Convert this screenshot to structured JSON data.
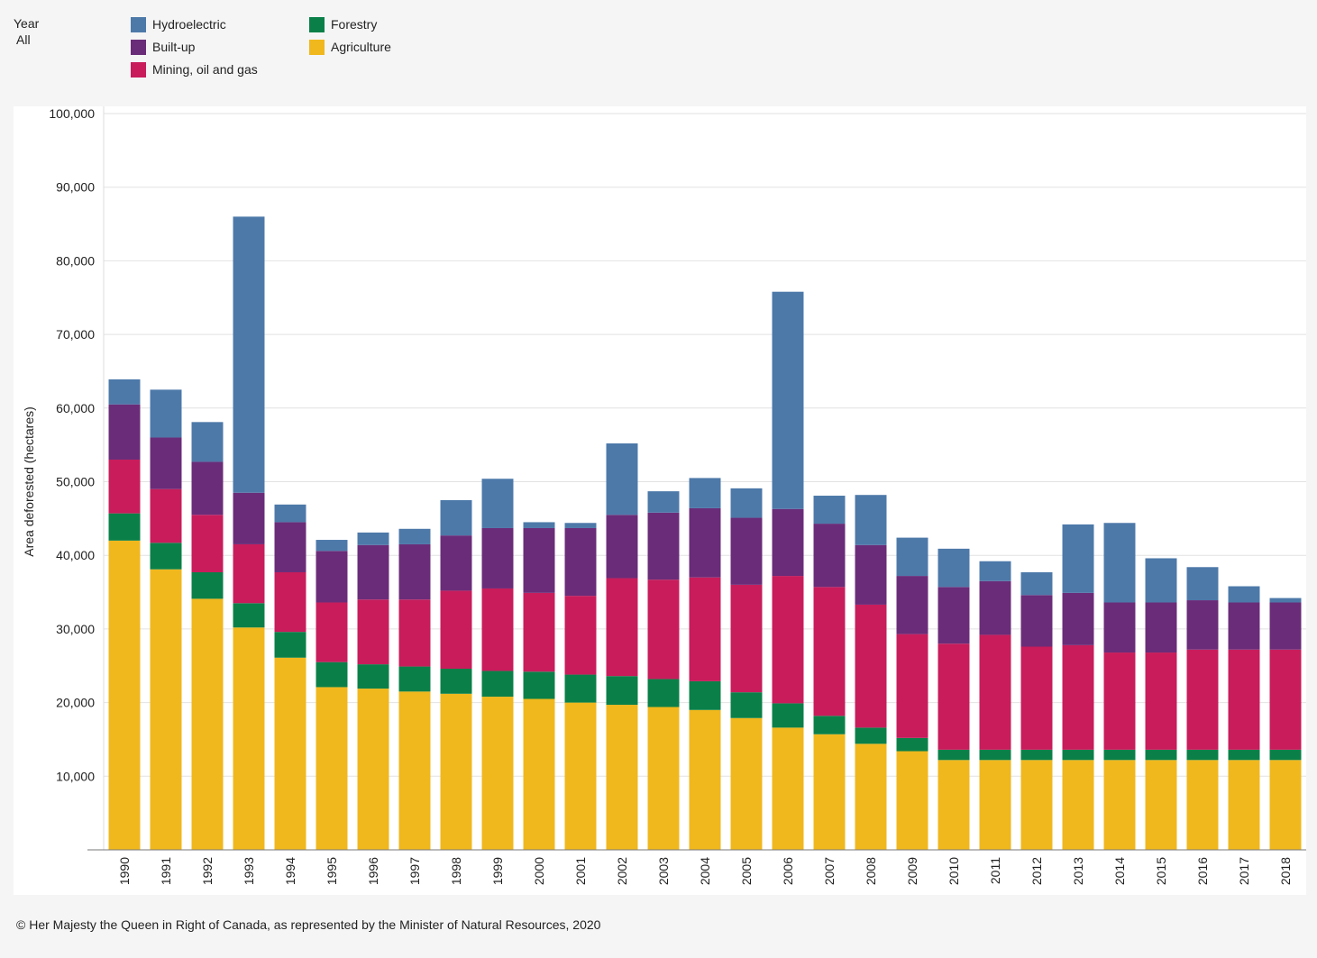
{
  "filter": {
    "label": "Year",
    "value": "All"
  },
  "footer": {
    "copyright": "© Her Majesty the Queen in Right of Canada, as represented by the Minister of Natural Resources, 2020"
  },
  "colors": {
    "Agriculture": "#f0b81d",
    "Forestry": "#0a8048",
    "Mining, oil and gas": "#c81c5b",
    "Built-up": "#6a2c79",
    "Hydroelectric": "#4d79a9"
  },
  "chart_data": {
    "type": "bar",
    "stacked": true,
    "title": "",
    "xlabel": "",
    "ylabel": "Area deforested (hectares)",
    "ylim": [
      0,
      100000
    ],
    "yticks": [
      10000,
      20000,
      30000,
      40000,
      50000,
      60000,
      70000,
      80000,
      90000,
      100000
    ],
    "ytick_labels": [
      "10,000",
      "20,000",
      "30,000",
      "40,000",
      "50,000",
      "60,000",
      "70,000",
      "80,000",
      "90,000",
      "100,000"
    ],
    "grid": true,
    "legend_position": "top-left",
    "legend_order": [
      "Hydroelectric",
      "Built-up",
      "Mining, oil and gas",
      "Forestry",
      "Agriculture"
    ],
    "categories": [
      "1990",
      "1991",
      "1992",
      "1993",
      "1994",
      "1995",
      "1996",
      "1997",
      "1998",
      "1999",
      "2000",
      "2001",
      "2002",
      "2003",
      "2004",
      "2005",
      "2006",
      "2007",
      "2008",
      "2009",
      "2010",
      "2011",
      "2012",
      "2013",
      "2014",
      "2015",
      "2016",
      "2017",
      "2018"
    ],
    "series": [
      {
        "name": "Agriculture",
        "values": [
          42000,
          38100,
          34100,
          30200,
          26100,
          22100,
          21900,
          21500,
          21200,
          20800,
          20500,
          20000,
          19700,
          19400,
          19000,
          17900,
          16600,
          15700,
          14400,
          13400,
          12200,
          12200,
          12200,
          12200,
          12200,
          12200,
          12200,
          12200,
          12200
        ]
      },
      {
        "name": "Forestry",
        "values": [
          3700,
          3600,
          3600,
          3300,
          3500,
          3400,
          3300,
          3400,
          3400,
          3500,
          3700,
          3800,
          3900,
          3800,
          3900,
          3500,
          3300,
          2500,
          2200,
          1800,
          1400,
          1400,
          1400,
          1400,
          1400,
          1400,
          1400,
          1400,
          1400
        ]
      },
      {
        "name": "Mining, oil and gas",
        "values": [
          7300,
          7300,
          7800,
          8000,
          8100,
          8100,
          8800,
          9100,
          10600,
          11200,
          10700,
          10700,
          13300,
          13500,
          14100,
          14600,
          17300,
          17500,
          16700,
          14100,
          14400,
          15600,
          14000,
          14200,
          13200,
          13200,
          13600,
          13600,
          13600
        ]
      },
      {
        "name": "Built-up",
        "values": [
          7500,
          7000,
          7200,
          7000,
          6800,
          7000,
          7400,
          7500,
          7500,
          8200,
          8800,
          9200,
          8600,
          9100,
          9400,
          9100,
          9100,
          8600,
          8100,
          7900,
          7700,
          7300,
          7000,
          7100,
          6800,
          6800,
          6700,
          6400,
          6400
        ]
      },
      {
        "name": "Hydroelectric",
        "values": [
          3400,
          6500,
          5400,
          37500,
          2400,
          1500,
          1700,
          2100,
          4800,
          6700,
          800,
          700,
          9700,
          2900,
          4100,
          4000,
          29500,
          3800,
          6800,
          5200,
          5200,
          2700,
          3100,
          9300,
          10800,
          6000,
          4500,
          2200,
          600
        ]
      }
    ]
  }
}
